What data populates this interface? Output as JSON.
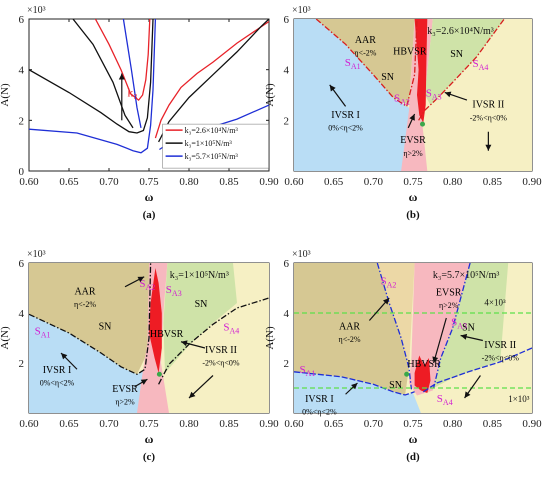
{
  "chart_data": [
    {
      "type": "line",
      "panel_label": "(a)",
      "xlabel": "ω",
      "ylabel": "A(N)",
      "y_multiplier": "×10³",
      "xlim": [
        0.6,
        0.9
      ],
      "ylim": [
        0,
        6
      ],
      "x_ticks": [
        "0.60",
        "0.65",
        "0.70",
        "0.75",
        "0.80",
        "0.85",
        "0.90"
      ],
      "y_ticks": [
        "0",
        "2",
        "4",
        "6"
      ],
      "arrow_label": "k₃",
      "legend": [
        "k₃=2.6×10⁴N/m³",
        "k₃=1×10⁵N/m³",
        "k₃=5.7×10⁵N/m³"
      ],
      "colors": [
        "#e8232a",
        "#111111",
        "#1f2fd6"
      ],
      "series": [
        {
          "name": "k₃=2.6×10⁴N/m³",
          "color": "#e8232a",
          "left": [
            [
              0.683,
              6.0
            ],
            [
              0.7,
              5.0
            ],
            [
              0.715,
              4.0
            ],
            [
              0.727,
              3.05
            ],
            [
              0.737,
              2.8
            ],
            [
              0.742,
              3.0
            ],
            [
              0.746,
              3.6
            ],
            [
              0.749,
              4.6
            ],
            [
              0.751,
              6.0
            ]
          ],
          "right": [
            [
              0.758,
              1.3
            ],
            [
              0.765,
              2.0
            ],
            [
              0.775,
              2.6
            ],
            [
              0.79,
              3.3
            ],
            [
              0.81,
              3.85
            ],
            [
              0.83,
              4.3
            ],
            [
              0.86,
              5.05
            ],
            [
              0.9,
              5.9
            ]
          ]
        },
        {
          "name": "k₃=1×10⁵N/m³",
          "color": "#111111",
          "left": [
            [
              0.6,
              4.0
            ],
            [
              0.65,
              3.1
            ],
            [
              0.69,
              2.3
            ],
            [
              0.71,
              1.85
            ],
            [
              0.725,
              1.55
            ],
            [
              0.735,
              1.5
            ],
            [
              0.743,
              1.6
            ],
            [
              0.748,
              2.1
            ],
            [
              0.752,
              3.5
            ],
            [
              0.755,
              6.0
            ]
          ],
          "right": [
            [
              0.762,
              1.15
            ],
            [
              0.775,
              1.95
            ],
            [
              0.8,
              2.9
            ],
            [
              0.83,
              3.8
            ],
            [
              0.86,
              4.7
            ],
            [
              0.89,
              5.7
            ],
            [
              0.9,
              6.0
            ]
          ],
          "upper": [
            [
              0.655,
              6.0
            ],
            [
              0.68,
              5.0
            ],
            [
              0.705,
              3.5
            ],
            [
              0.72,
              2.2
            ],
            [
              0.73,
              1.7
            ]
          ]
        },
        {
          "name": "k₃=5.7×10⁵N/m³",
          "color": "#1f2fd6",
          "left": [
            [
              0.6,
              1.65
            ],
            [
              0.66,
              1.5
            ],
            [
              0.71,
              1.05
            ],
            [
              0.73,
              0.8
            ],
            [
              0.74,
              0.72
            ],
            [
              0.748,
              0.9
            ],
            [
              0.752,
              1.8
            ],
            [
              0.755,
              3.2
            ],
            [
              0.758,
              6.0
            ]
          ],
          "right": [
            [
              0.763,
              0.85
            ],
            [
              0.78,
              1.2
            ],
            [
              0.82,
              1.65
            ],
            [
              0.86,
              2.05
            ],
            [
              0.9,
              2.6
            ]
          ],
          "upper": [
            [
              0.718,
              6.0
            ],
            [
              0.728,
              4.0
            ],
            [
              0.735,
              2.5
            ],
            [
              0.74,
              1.7
            ]
          ]
        }
      ]
    },
    {
      "type": "area",
      "panel_label": "(b)",
      "xlabel": "ω",
      "ylabel": "A(N)",
      "y_multiplier": "×10³",
      "xlim": [
        0.6,
        0.9
      ],
      "ylim": [
        0,
        6
      ],
      "x_ticks": [
        "0.60",
        "0.65",
        "0.70",
        "0.75",
        "0.80",
        "0.85",
        "0.90"
      ],
      "y_ticks": [
        "2",
        "4",
        "6"
      ],
      "annotation": "k₃=2.6×10⁴N/m³",
      "regions": [
        {
          "name": "AAR",
          "sub": "η<-2%"
        },
        {
          "name": "SN",
          "sub": ""
        },
        {
          "name": "SN",
          "sub": ""
        },
        {
          "name": "HBVSR",
          "sub": ""
        },
        {
          "name": "IVSR I",
          "sub": "0%<η<2%"
        },
        {
          "name": "IVSR II",
          "sub": "-2%<η<0%"
        },
        {
          "name": "EVSR",
          "sub": "η>2%"
        }
      ],
      "points": [
        "S",
        "S",
        "S",
        "S"
      ],
      "point_subs": [
        "A1",
        "A2",
        "A3",
        "A4"
      ]
    },
    {
      "type": "area",
      "panel_label": "(c)",
      "xlabel": "ω",
      "ylabel": "A(N)",
      "y_multiplier": "×10³",
      "xlim": [
        0.6,
        0.9
      ],
      "ylim": [
        0,
        6
      ],
      "x_ticks": [
        "0.60",
        "0.65",
        "0.70",
        "0.75",
        "0.80",
        "0.85",
        "0.90"
      ],
      "y_ticks": [
        "2",
        "4",
        "6"
      ],
      "annotation": "k₃=1×10⁵N/m³",
      "regions": [
        {
          "name": "AAR",
          "sub": "η<-2%"
        },
        {
          "name": "SN",
          "sub": ""
        },
        {
          "name": "SN",
          "sub": ""
        },
        {
          "name": "HBVSR",
          "sub": ""
        },
        {
          "name": "IVSR I",
          "sub": "0%<η<2%"
        },
        {
          "name": "IVSR II",
          "sub": "-2%<η<0%"
        },
        {
          "name": "EVSR",
          "sub": "η>2%"
        }
      ],
      "points": [
        "S",
        "S",
        "S",
        "S"
      ],
      "point_subs": [
        "A1",
        "A2",
        "A3",
        "A4"
      ]
    },
    {
      "type": "area",
      "panel_label": "(d)",
      "xlabel": "ω",
      "ylabel": "A(N)",
      "y_multiplier": "×10³",
      "xlim": [
        0.6,
        0.9
      ],
      "ylim": [
        0,
        6
      ],
      "x_ticks": [
        "0.60",
        "0.65",
        "0.70",
        "0.75",
        "0.80",
        "0.85",
        "0.90"
      ],
      "y_ticks": [
        "2",
        "4",
        "6"
      ],
      "annotation": "k₃=5.7×10⁵N/m³",
      "reference_lines": [
        4.0,
        1.0
      ],
      "reference_labels": [
        "4×10³",
        "1×10³"
      ],
      "regions": [
        {
          "name": "AAR",
          "sub": "η<-2%"
        },
        {
          "name": "EVSR",
          "sub": "η>2%"
        },
        {
          "name": "SN",
          "sub": ""
        },
        {
          "name": "SN",
          "sub": ""
        },
        {
          "name": "HBVSR",
          "sub": ""
        },
        {
          "name": "IVSR I",
          "sub": "0%<η<2%"
        },
        {
          "name": "IVSR II",
          "sub": "-2%<η<0%"
        }
      ],
      "points": [
        "S",
        "S",
        "S",
        "S"
      ],
      "point_subs": [
        "A1",
        "A2",
        "A3",
        "A4"
      ]
    }
  ]
}
